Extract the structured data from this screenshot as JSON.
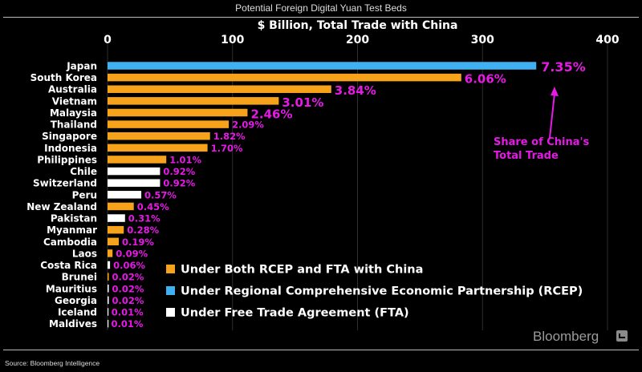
{
  "header": {
    "title": "Potential Foreign Digital Yuan Test Beds"
  },
  "footer": {
    "source": "Source: Bloomberg Intelligence",
    "brand": "Bloomberg"
  },
  "colors": {
    "both": "#f7a21b",
    "rcep": "#3fb0f2",
    "fta": "#ffffff",
    "label": "#e619e6",
    "axis": "#ffffff"
  },
  "chart_data": {
    "type": "bar",
    "orientation": "horizontal",
    "title": "Potential Foreign Digital Yuan Test Beds",
    "xlabel": "$ Billion, Total Trade with China",
    "xlim": [
      0,
      400
    ],
    "xticks": [
      0,
      100,
      200,
      300,
      400
    ],
    "axis_position": "top",
    "grid": true,
    "categories": [
      "Japan",
      "South Korea",
      "Australia",
      "Vietnam",
      "Malaysia",
      "Thailand",
      "Singapore",
      "Indonesia",
      "Philippines",
      "Chile",
      "Switzerland",
      "Peru",
      "New Zealand",
      "Pakistan",
      "Myanmar",
      "Cambodia",
      "Laos",
      "Costa Rica",
      "Brunei",
      "Mauritius",
      "Georgia",
      "Iceland",
      "Maldives"
    ],
    "values": [
      343,
      283,
      179,
      137,
      112,
      97,
      82,
      80,
      47,
      42,
      42,
      27,
      21,
      14,
      13,
      9,
      4,
      2,
      1,
      1,
      1,
      0.5,
      0.3
    ],
    "groups": [
      "rcep",
      "both",
      "both",
      "both",
      "both",
      "both",
      "both",
      "both",
      "both",
      "fta",
      "fta",
      "fta",
      "both",
      "fta",
      "both",
      "both",
      "both",
      "fta",
      "both",
      "fta",
      "fta",
      "fta",
      "fta"
    ],
    "data_labels": [
      "7.35%",
      "6.06%",
      "3.84%",
      "3.01%",
      "2.46%",
      "2.09%",
      "1.82%",
      "1.70%",
      "1.01%",
      "0.92%",
      "0.92%",
      "0.57%",
      "0.45%",
      "0.31%",
      "0.28%",
      "0.19%",
      "0.09%",
      "0.06%",
      "0.02%",
      "0.02%",
      "0.02%",
      "0.01%",
      "0.01%"
    ],
    "legend": {
      "position": "bottom-right",
      "items": [
        {
          "key": "both",
          "label": "Under Both RCEP and FTA with China"
        },
        {
          "key": "rcep",
          "label": "Under Regional Comprehensive Economic Partnership (RCEP)"
        },
        {
          "key": "fta",
          "label": "Under Free Trade Agreement (FTA)"
        }
      ]
    },
    "annotation": {
      "text": [
        "Share of China's",
        "Total Trade"
      ]
    }
  }
}
